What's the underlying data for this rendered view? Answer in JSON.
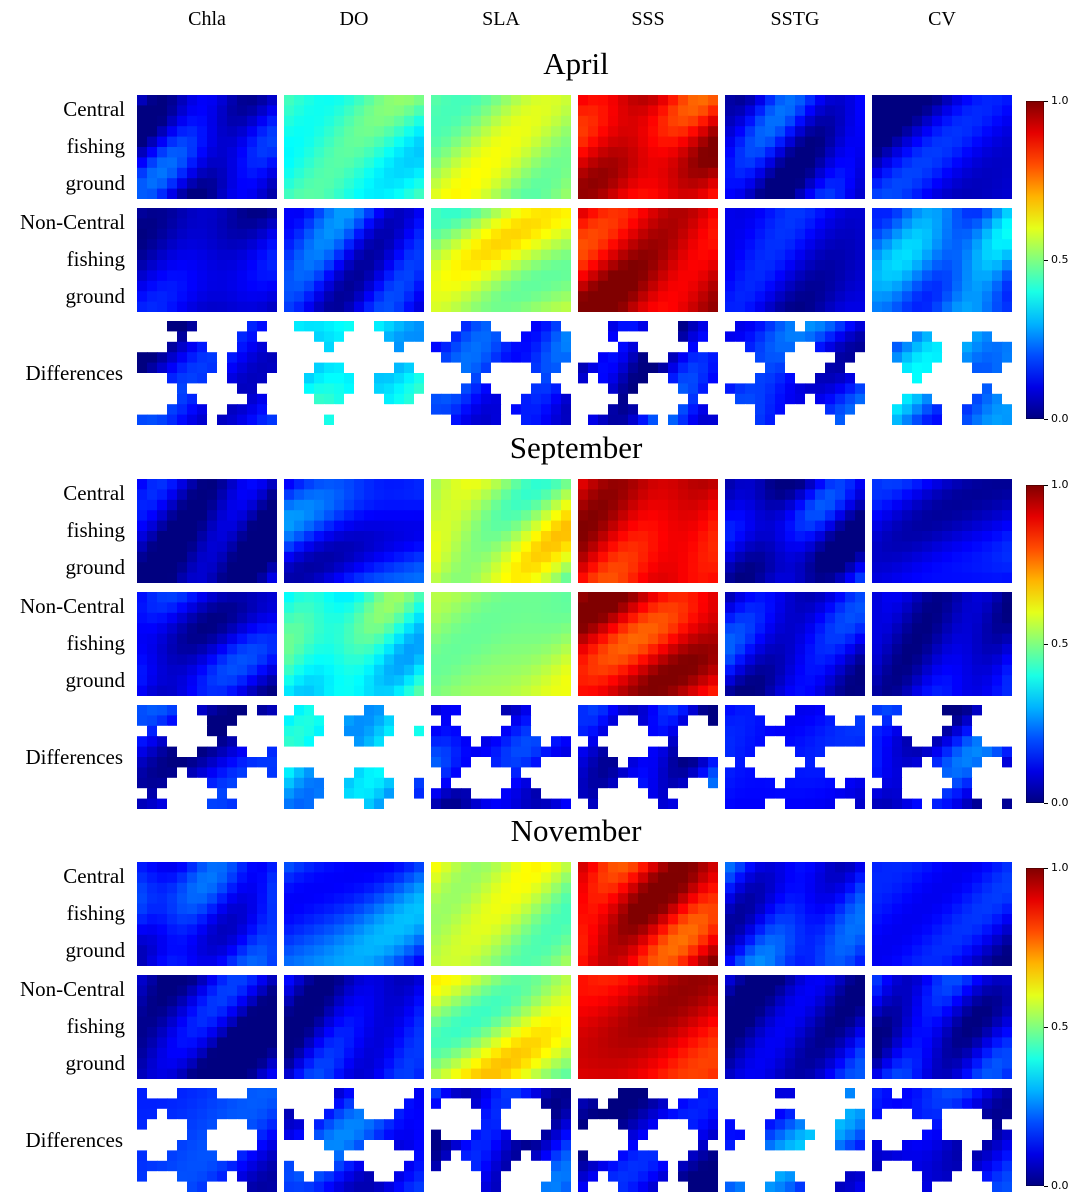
{
  "columns": [
    "Chla",
    "DO",
    "SLA",
    "SSS",
    "SSTG",
    "CV"
  ],
  "row_labels": {
    "central": [
      "Central",
      "fishing",
      "ground"
    ],
    "noncentral": [
      "Non-Central",
      "fishing",
      "ground"
    ],
    "differences": "Differences"
  },
  "colorbar": {
    "colormap": "jet",
    "ticks": [
      "0.0",
      "0.5",
      "1.0"
    ]
  },
  "chart_data": {
    "type": "heatmap",
    "colormap": "jet",
    "value_range": [
      0,
      1
    ],
    "months": [
      {
        "title": "April",
        "central": [
          0.1,
          0.42,
          0.52,
          0.9,
          0.1,
          0.08
        ],
        "noncentral": [
          0.08,
          0.15,
          0.55,
          0.92,
          0.1,
          0.25
        ],
        "differences": [
          0.1,
          0.35,
          0.15,
          0.1,
          0.15,
          0.25
        ]
      },
      {
        "title": "September",
        "central": [
          0.05,
          0.15,
          0.55,
          0.9,
          0.08,
          0.1
        ],
        "noncentral": [
          0.1,
          0.4,
          0.52,
          0.9,
          0.1,
          0.08
        ],
        "differences": [
          0.1,
          0.3,
          0.12,
          0.1,
          0.12,
          0.12
        ]
      },
      {
        "title": "November",
        "central": [
          0.15,
          0.2,
          0.55,
          0.9,
          0.15,
          0.12
        ],
        "noncentral": [
          0.05,
          0.1,
          0.55,
          0.9,
          0.08,
          0.1
        ],
        "differences": [
          0.15,
          0.15,
          0.12,
          0.05,
          0.2,
          0.12
        ]
      }
    ]
  }
}
